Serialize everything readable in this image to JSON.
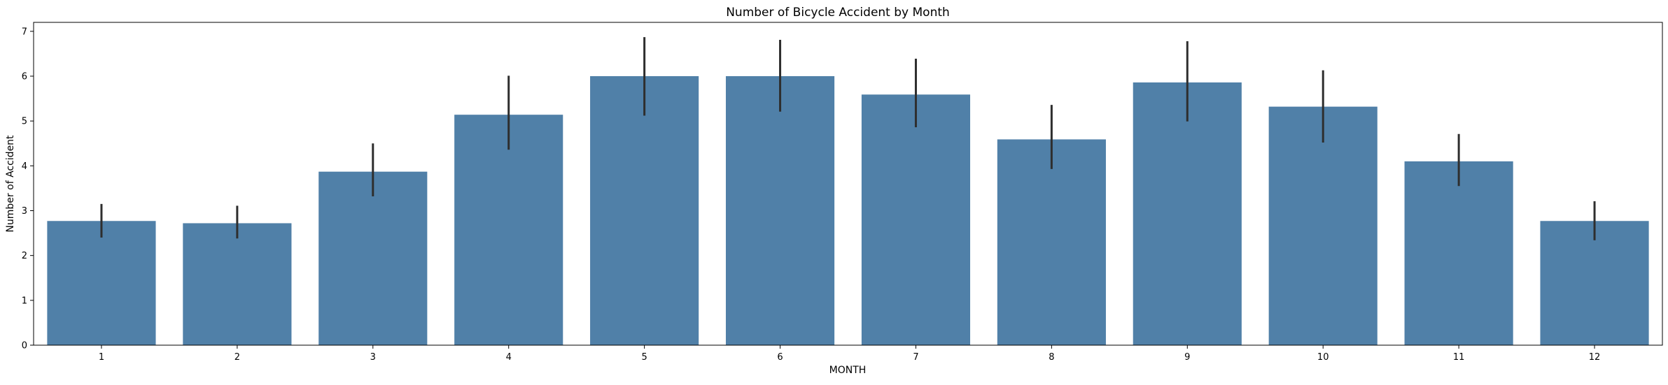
{
  "chart_data": {
    "type": "bar",
    "title": "Number of Bicycle Accident by Month",
    "xlabel": "MONTH",
    "ylabel": "Number of Accident",
    "categories": [
      "1",
      "2",
      "3",
      "4",
      "5",
      "6",
      "7",
      "8",
      "9",
      "10",
      "11",
      "12"
    ],
    "values": [
      2.77,
      2.72,
      3.87,
      5.14,
      6.0,
      6.0,
      5.59,
      4.59,
      5.86,
      5.32,
      4.1,
      2.77
    ],
    "error_low": [
      2.4,
      2.38,
      3.32,
      4.36,
      5.12,
      5.21,
      4.86,
      3.93,
      4.99,
      4.52,
      3.55,
      2.34
    ],
    "error_high": [
      3.15,
      3.11,
      4.5,
      6.01,
      6.87,
      6.81,
      6.39,
      5.36,
      6.78,
      6.13,
      4.71,
      3.21
    ],
    "yticks": [
      0,
      1,
      2,
      3,
      4,
      5,
      6,
      7
    ],
    "ylim": [
      0,
      7.2
    ],
    "grid": false,
    "colors": {
      "bar": "#5080a8",
      "errorbar": "#2e2e2e",
      "axis": "#000000"
    }
  }
}
